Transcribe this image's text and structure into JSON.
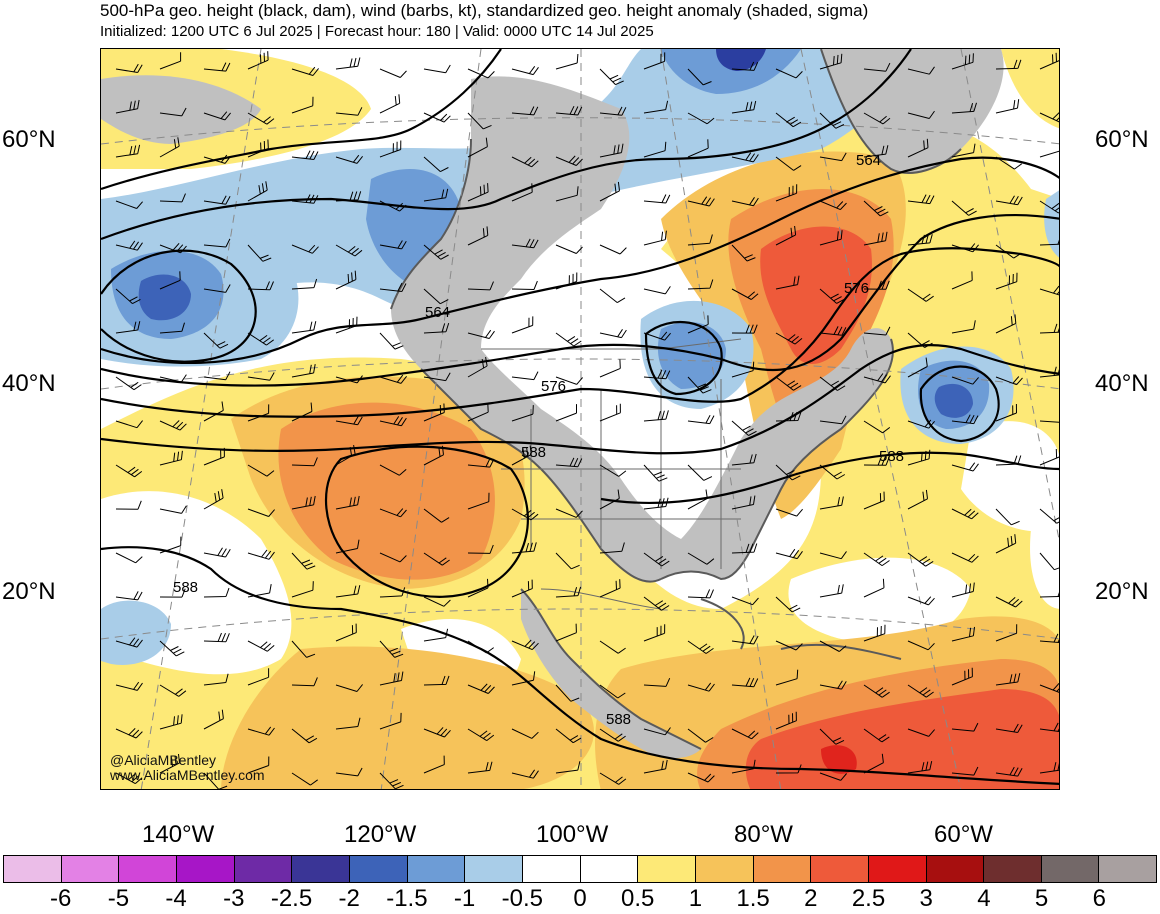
{
  "header": {
    "title": "500-hPa geo. height (black, dam), wind (barbs, kt), standardized geo. height anomaly (shaded, sigma)",
    "subtitle": "Initialized: 1200 UTC 6 Jul 2025 | Forecast hour: 180 | Valid: 0000 UTC 14 Jul 2025"
  },
  "map": {
    "lat_labels": [
      "60°N",
      "40°N",
      "20°N"
    ],
    "lon_labels": [
      "140°W",
      "120°W",
      "100°W",
      "80°W",
      "60°W"
    ],
    "contour_labels": [
      "564",
      "564",
      "576",
      "576",
      "588",
      "588",
      "588",
      "588"
    ],
    "colors": {
      "land": "#c0c0c0",
      "coast": "#5a5a5a",
      "contour": "#000000",
      "neg_05": "#a9cde8",
      "neg_1": "#6d9cd6",
      "neg_15": "#3d63b8",
      "neg_2": "#2b3ea0",
      "pos_05": "#fde977",
      "pos_1": "#f6c35a",
      "pos_15": "#f2944a",
      "pos_2": "#ee5a3a",
      "pos_25": "#e0241d"
    }
  },
  "credits": {
    "handle": "@AliciaMBentley",
    "website": "www.AliciaMBentley.com"
  },
  "colorbar": {
    "colors": [
      "#ebbde8",
      "#e381e5",
      "#d145d8",
      "#a716c7",
      "#6e2aa6",
      "#3a3596",
      "#3d63b8",
      "#6d9cd6",
      "#a9cde8",
      "#ffffff",
      "#ffffff",
      "#fde977",
      "#f6c35a",
      "#f2944a",
      "#ee5a3a",
      "#e01818",
      "#a70f0f",
      "#6e2e2e",
      "#736868",
      "#a8a0a0"
    ],
    "labels": [
      "-6",
      "-5",
      "-4",
      "-3",
      "-2.5",
      "-2",
      "-1.5",
      "-1",
      "-0.5",
      "0",
      "0.5",
      "1",
      "1.5",
      "2",
      "2.5",
      "3",
      "4",
      "5",
      "6"
    ]
  }
}
